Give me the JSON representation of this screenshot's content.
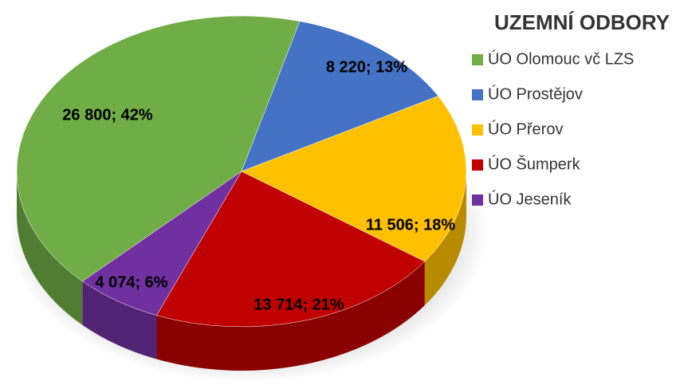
{
  "chart_data": {
    "type": "pie",
    "title": "UZEMNÍ ODBORY",
    "categories": [
      "ÚO Olomouc vč LZS",
      "ÚO Prostějov",
      "ÚO Přerov",
      "ÚO Šumperk",
      "ÚO Jeseník"
    ],
    "values": [
      26800,
      8220,
      11506,
      13714,
      4074
    ],
    "value_labels": [
      "26 800; 42%",
      "8 220; 13%",
      "11 506; 18%",
      "13 714; 21%",
      "4 074; 6%"
    ],
    "colors": [
      "#70ad47",
      "#4472c4",
      "#ffc000",
      "#c00000",
      "#7030a0"
    ],
    "legend": "right"
  }
}
